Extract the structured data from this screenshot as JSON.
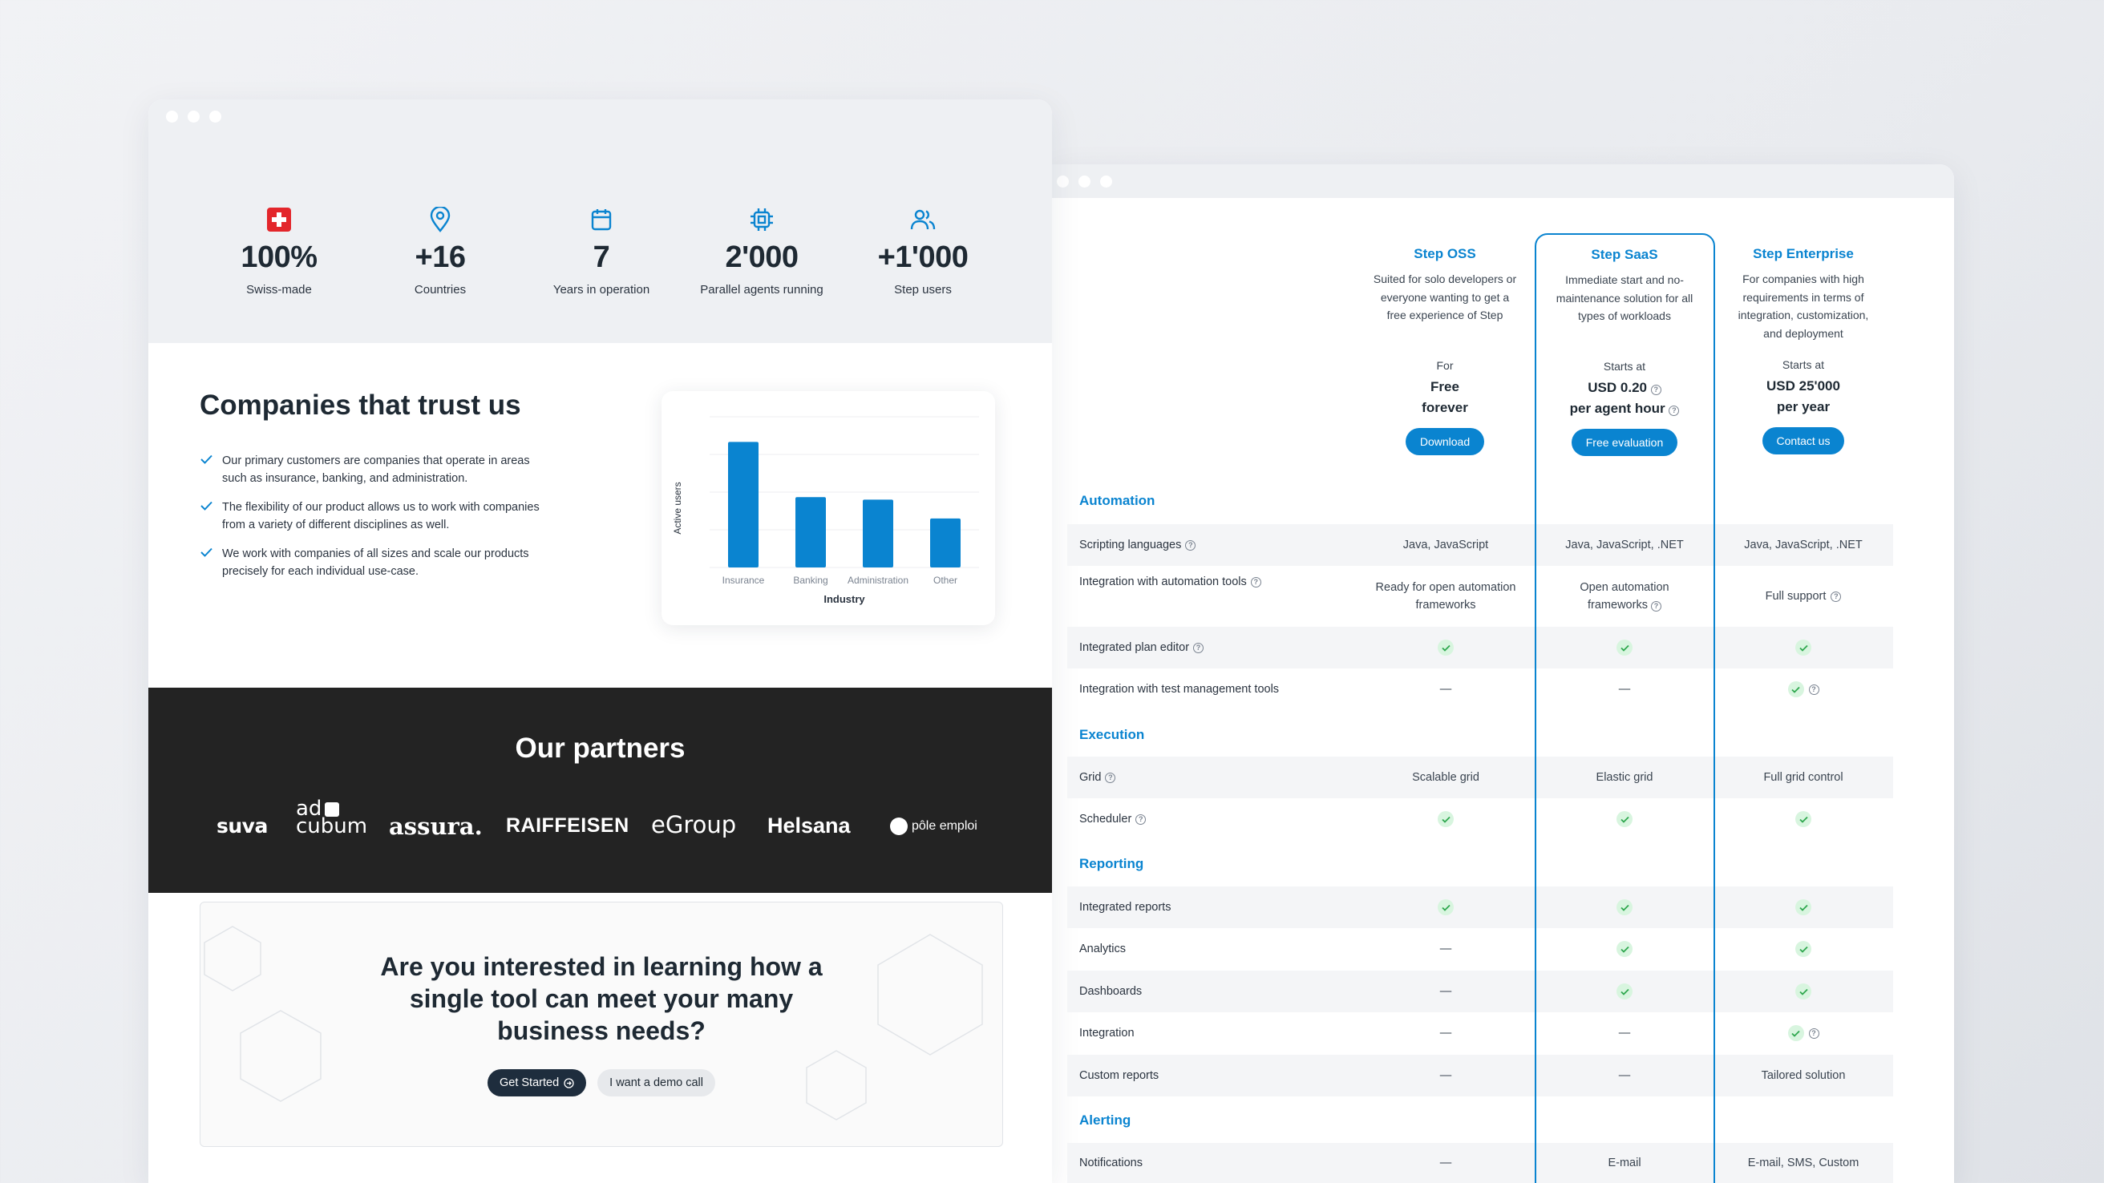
{
  "left_window": {
    "stats": [
      {
        "icon": "swiss-flag-icon",
        "value": "100%",
        "label": "Swiss-made"
      },
      {
        "icon": "location-pin-icon",
        "value": "+16",
        "label": "Countries"
      },
      {
        "icon": "calendar-icon",
        "value": "7",
        "label": "Years in operation"
      },
      {
        "icon": "cpu-chip-icon",
        "value": "2'000",
        "label": "Parallel agents running"
      },
      {
        "icon": "users-icon",
        "value": "+1'000",
        "label": "Step users"
      }
    ],
    "trust": {
      "title": "Companies that trust us",
      "bullets": [
        "Our primary customers are companies that operate in areas such as insurance, banking, and administration.",
        "The flexibility of our product allows us to work with companies from a variety of different disciplines as well.",
        "We work with companies of all sizes and scale our products precisely for each individual use-case."
      ]
    },
    "partners": {
      "title": "Our partners",
      "logos": [
        "suva",
        "ad",
        "cubum",
        "assura.",
        "RAIFFEISEN",
        "eGroup",
        "Helsana",
        "pôle emploi"
      ]
    },
    "cta": {
      "title_line1": "Are you interested in learning how a",
      "title_line2": "single tool can meet your many",
      "title_line3": "business needs?",
      "primary_label": "Get Started",
      "secondary_label": "I want a demo call"
    }
  },
  "chart_data": {
    "type": "bar",
    "categories": [
      "Insurance",
      "Banking",
      "Administration",
      "Other"
    ],
    "values": [
      100,
      56,
      54,
      39
    ],
    "xlabel": "Industry",
    "ylabel": "Active users",
    "ylim": [
      0,
      120
    ],
    "grid": true,
    "bar_color": "#0a84d0"
  },
  "pricing": {
    "plans": [
      {
        "name": "Step OSS",
        "desc": [
          "Suited for solo developers or",
          "everyone wanting to get a",
          "free experience of Step"
        ],
        "for": "For",
        "price1": "Free",
        "price2": "forever",
        "button": "Download"
      },
      {
        "name": "Step SaaS",
        "desc": [
          "Immediate start and no-",
          "maintenance solution for all",
          "types of workloads"
        ],
        "for": "Starts at",
        "price1": "USD 0.20",
        "price2": "per agent hour",
        "button": "Free evaluation"
      },
      {
        "name": "Step Enterprise",
        "desc": [
          "For companies with high",
          "requirements in terms of",
          "integration, customization,",
          "and deployment"
        ],
        "for": "Starts at",
        "price1": "USD 25'000",
        "price2": "per year",
        "button": "Contact us"
      }
    ],
    "sections": {
      "automation": "Automation",
      "execution": "Execution",
      "reporting": "Reporting",
      "alerting": "Alerting"
    },
    "rows": {
      "scripting": {
        "label": "Scripting languages",
        "c1": "Java, JavaScript",
        "c2": "Java, JavaScript, .NET",
        "c3": "Java, JavaScript, .NET"
      },
      "integration_auto": {
        "label": "Integration with automation tools",
        "c1a": "Ready for open automation",
        "c1b": "frameworks",
        "c2a": "Open automation",
        "c2b": "frameworks",
        "c3": "Full support"
      },
      "plan_editor": {
        "label": "Integrated plan editor"
      },
      "test_mgmt": {
        "label": "Integration with test management tools",
        "dash": "—"
      },
      "grid": {
        "label": "Grid",
        "c1": "Scalable grid",
        "c2": "Elastic grid",
        "c3": "Full grid control"
      },
      "scheduler": {
        "label": "Scheduler"
      },
      "int_reports": {
        "label": "Integrated reports"
      },
      "analytics": {
        "label": "Analytics"
      },
      "dashboards": {
        "label": "Dashboards"
      },
      "integration": {
        "label": "Integration"
      },
      "custom_reports": {
        "label": "Custom reports",
        "c3": "Tailored solution"
      },
      "notifications": {
        "label": "Notifications",
        "c2": "E-mail",
        "c3": "E-mail, SMS, Custom"
      }
    },
    "dash": "—",
    "help": "?"
  },
  "colors": {
    "accent": "#0a84d0",
    "dark": "#232323",
    "check_bg": "#d8f5df",
    "check": "#2fa84f",
    "swiss_red": "#e3262b"
  }
}
